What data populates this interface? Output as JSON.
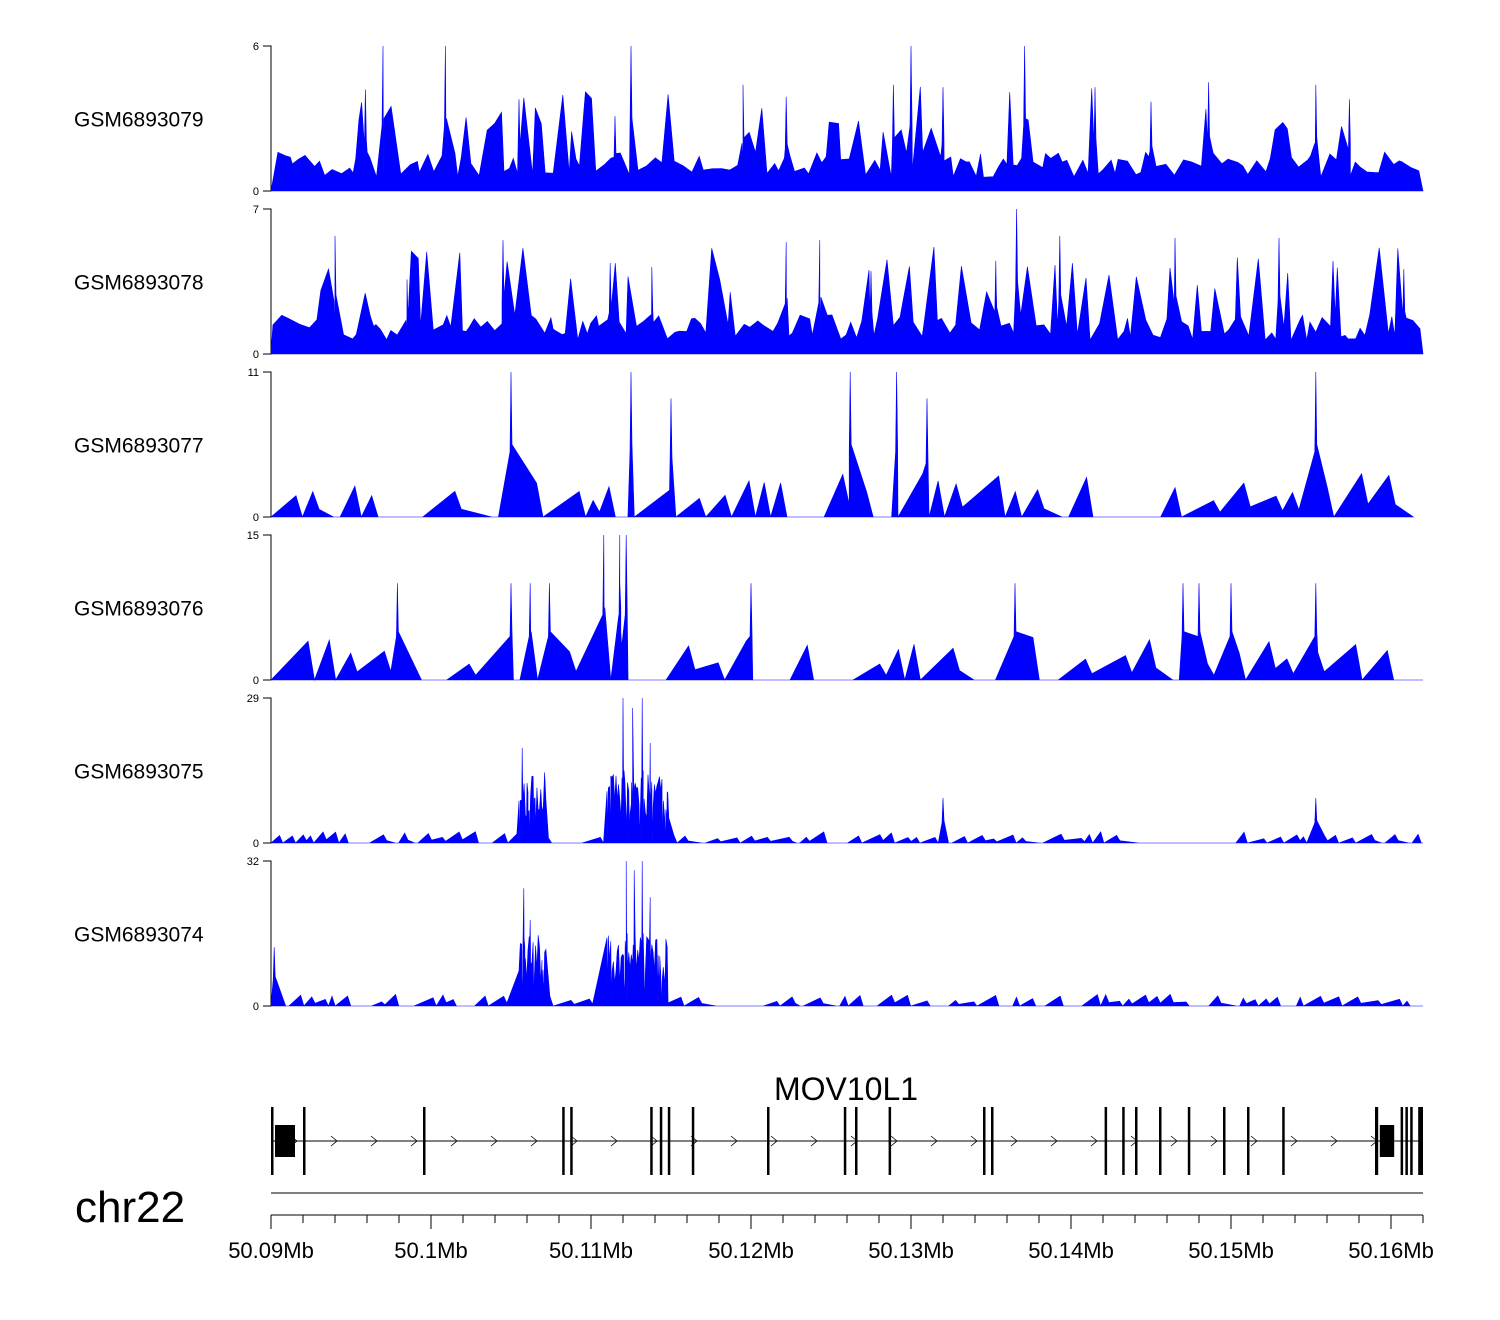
{
  "chart_data": {
    "type": "area",
    "title": "",
    "chromosome": "chr22",
    "xlim": [
      50.09,
      50.162
    ],
    "x_unit": "Mb",
    "x_ticks": [
      {
        "value": 50.09,
        "label": "50.09Mb"
      },
      {
        "value": 50.1,
        "label": "50.1Mb"
      },
      {
        "value": 50.11,
        "label": "50.11Mb"
      },
      {
        "value": 50.12,
        "label": "50.12Mb"
      },
      {
        "value": 50.13,
        "label": "50.13Mb"
      },
      {
        "value": 50.14,
        "label": "50.14Mb"
      },
      {
        "value": 50.15,
        "label": "50.15Mb"
      },
      {
        "value": 50.16,
        "label": "50.16Mb"
      }
    ],
    "tracks": [
      {
        "name": "GSM6893079",
        "ymin": 0,
        "ymax": 6,
        "style": "noise",
        "peaks": [
          [
            50.0959,
            4.2
          ],
          [
            50.097,
            6
          ],
          [
            50.1009,
            6
          ],
          [
            50.1055,
            3.8
          ],
          [
            50.1115,
            3.1
          ],
          [
            50.1125,
            6
          ],
          [
            50.1195,
            4.4
          ],
          [
            50.1222,
            3.9
          ],
          [
            50.1289,
            4.4
          ],
          [
            50.13,
            6
          ],
          [
            50.132,
            4.3
          ],
          [
            50.1371,
            6
          ],
          [
            50.1415,
            4.3
          ],
          [
            50.145,
            3.7
          ],
          [
            50.1486,
            4.5
          ],
          [
            50.1553,
            4.4
          ],
          [
            50.1574,
            3.8
          ]
        ]
      },
      {
        "name": "GSM6893078",
        "ymin": 0,
        "ymax": 7,
        "style": "noise",
        "peaks": [
          [
            50.094,
            5.7
          ],
          [
            50.0985,
            3.6
          ],
          [
            50.1045,
            5.5
          ],
          [
            50.1112,
            4.4
          ],
          [
            50.1138,
            4.2
          ],
          [
            50.1222,
            5.4
          ],
          [
            50.1243,
            5.5
          ],
          [
            50.1275,
            4.0
          ],
          [
            50.1353,
            4.5
          ],
          [
            50.1366,
            7
          ],
          [
            50.1393,
            5.7
          ],
          [
            50.1465,
            5.6
          ],
          [
            50.153,
            5.6
          ],
          [
            50.1608,
            4.1
          ]
        ]
      },
      {
        "name": "GSM6893077",
        "ymin": 0,
        "ymax": 11,
        "style": "coverage",
        "peaks": [
          [
            50.105,
            11
          ],
          [
            50.1125,
            11
          ],
          [
            50.115,
            9
          ],
          [
            50.1262,
            11
          ],
          [
            50.1291,
            11
          ],
          [
            50.131,
            9
          ],
          [
            50.1553,
            11
          ]
        ]
      },
      {
        "name": "GSM6893076",
        "ymin": 0,
        "ymax": 15,
        "style": "coverage",
        "peaks": [
          [
            50.0979,
            10
          ],
          [
            50.105,
            10
          ],
          [
            50.1062,
            10
          ],
          [
            50.1074,
            10
          ],
          [
            50.1108,
            15
          ],
          [
            50.1118,
            15
          ],
          [
            50.1122,
            15
          ],
          [
            50.1118,
            10
          ],
          [
            50.12,
            10
          ],
          [
            50.1365,
            10
          ],
          [
            50.147,
            10
          ],
          [
            50.148,
            10
          ],
          [
            50.15,
            10
          ],
          [
            50.1553,
            10
          ]
        ]
      },
      {
        "name": "GSM6893075",
        "ymin": 0,
        "ymax": 29,
        "style": "peaks",
        "peaks": [
          [
            50.1057,
            19
          ],
          [
            50.106,
            12
          ],
          [
            50.1065,
            9
          ],
          [
            50.112,
            29
          ],
          [
            50.1126,
            27
          ],
          [
            50.1132,
            29
          ],
          [
            50.1137,
            20
          ],
          [
            50.1148,
            10
          ],
          [
            50.132,
            9
          ],
          [
            50.1553,
            9
          ]
        ]
      },
      {
        "name": "GSM6893074",
        "ymin": 0,
        "ymax": 32,
        "style": "peaks",
        "peaks": [
          [
            50.0902,
            13
          ],
          [
            50.1058,
            26
          ],
          [
            50.1062,
            19
          ],
          [
            50.107,
            8
          ],
          [
            50.1122,
            32
          ],
          [
            50.1127,
            30
          ],
          [
            50.1132,
            32
          ],
          [
            50.1137,
            24
          ],
          [
            50.1143,
            11
          ]
        ]
      }
    ],
    "gene": {
      "name": "MOV10L1",
      "strand": "+",
      "start": 50.09,
      "end": 50.162,
      "exons": [
        [
          50.09,
          50.09015
        ],
        [
          50.09025,
          50.0915
        ],
        [
          50.092,
          50.09215
        ],
        [
          50.0995,
          50.09965
        ],
        [
          50.1082,
          50.10835
        ],
        [
          50.1087,
          50.10885
        ],
        [
          50.1137,
          50.11385
        ],
        [
          50.1143,
          50.11445
        ],
        [
          50.1148,
          50.11495
        ],
        [
          50.1163,
          50.11645
        ],
        [
          50.121,
          50.12115
        ],
        [
          50.1258,
          50.12595
        ],
        [
          50.1265,
          50.12665
        ],
        [
          50.1286,
          50.12875
        ],
        [
          50.1345,
          50.13465
        ],
        [
          50.135,
          50.13515
        ],
        [
          50.1421,
          50.14225
        ],
        [
          50.1432,
          50.14335
        ],
        [
          50.144,
          50.14415
        ],
        [
          50.1455,
          50.14565
        ],
        [
          50.1473,
          50.14745
        ],
        [
          50.1495,
          50.14965
        ],
        [
          50.151,
          50.15115
        ],
        [
          50.1532,
          50.15335
        ],
        [
          50.159,
          50.1592
        ],
        [
          50.1593,
          50.1602
        ],
        [
          50.1606,
          50.16075
        ],
        [
          50.1609,
          50.16105
        ],
        [
          50.1612,
          50.16135
        ],
        [
          50.1617,
          50.162
        ]
      ]
    },
    "colors": {
      "signal": "#0000ff",
      "gene": "#000000",
      "axis": "#000000"
    }
  }
}
